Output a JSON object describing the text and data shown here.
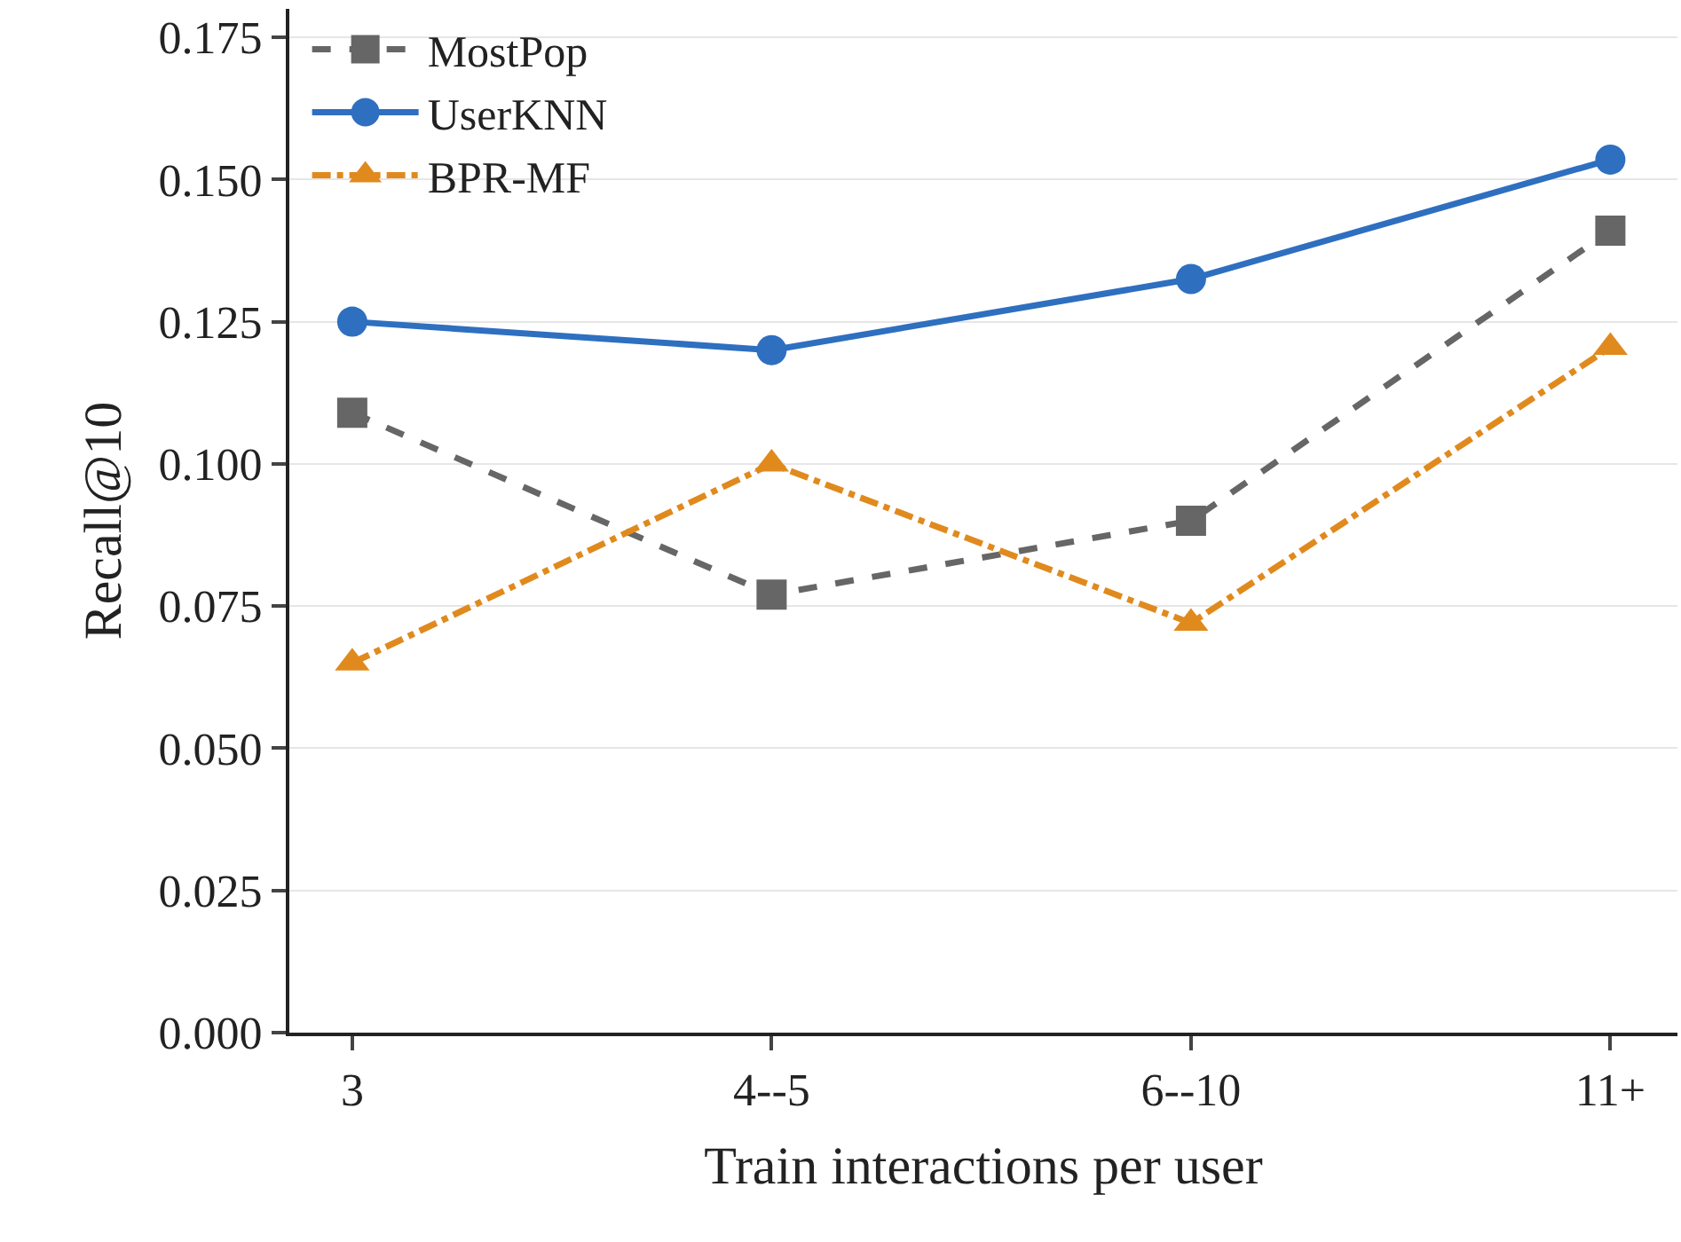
{
  "chart_data": {
    "type": "line",
    "xlabel": "Train interactions per user",
    "ylabel": "Recall@10",
    "categories": [
      "3",
      "4--5",
      "6--10",
      "11+"
    ],
    "series": [
      {
        "name": "MostPop",
        "color": "#666666",
        "values": [
          0.109,
          0.077,
          0.09,
          0.141
        ],
        "marker": "square",
        "line_style": "dashed"
      },
      {
        "name": "UserKNN",
        "color": "#2e6fc0",
        "values": [
          0.125,
          0.12,
          0.1325,
          0.1535
        ],
        "marker": "circle",
        "line_style": "solid"
      },
      {
        "name": "BPR-MF",
        "color": "#e08a1e",
        "values": [
          0.065,
          0.1,
          0.072,
          0.1205
        ],
        "marker": "triangle",
        "line_style": "dashdot"
      }
    ],
    "ylim": [
      0,
      0.18
    ],
    "yticks": [
      {
        "value": 0,
        "label": "0.000"
      },
      {
        "value": 0.025,
        "label": "0.025"
      },
      {
        "value": 0.05,
        "label": "0.050"
      },
      {
        "value": 0.075,
        "label": "0.075"
      },
      {
        "value": 0.1,
        "label": "0.100"
      },
      {
        "value": 0.125,
        "label": "0.125"
      },
      {
        "value": 0.15,
        "label": "0.150"
      },
      {
        "value": 0.175,
        "label": "0.175"
      }
    ],
    "grid": "y",
    "legend": "top left"
  }
}
